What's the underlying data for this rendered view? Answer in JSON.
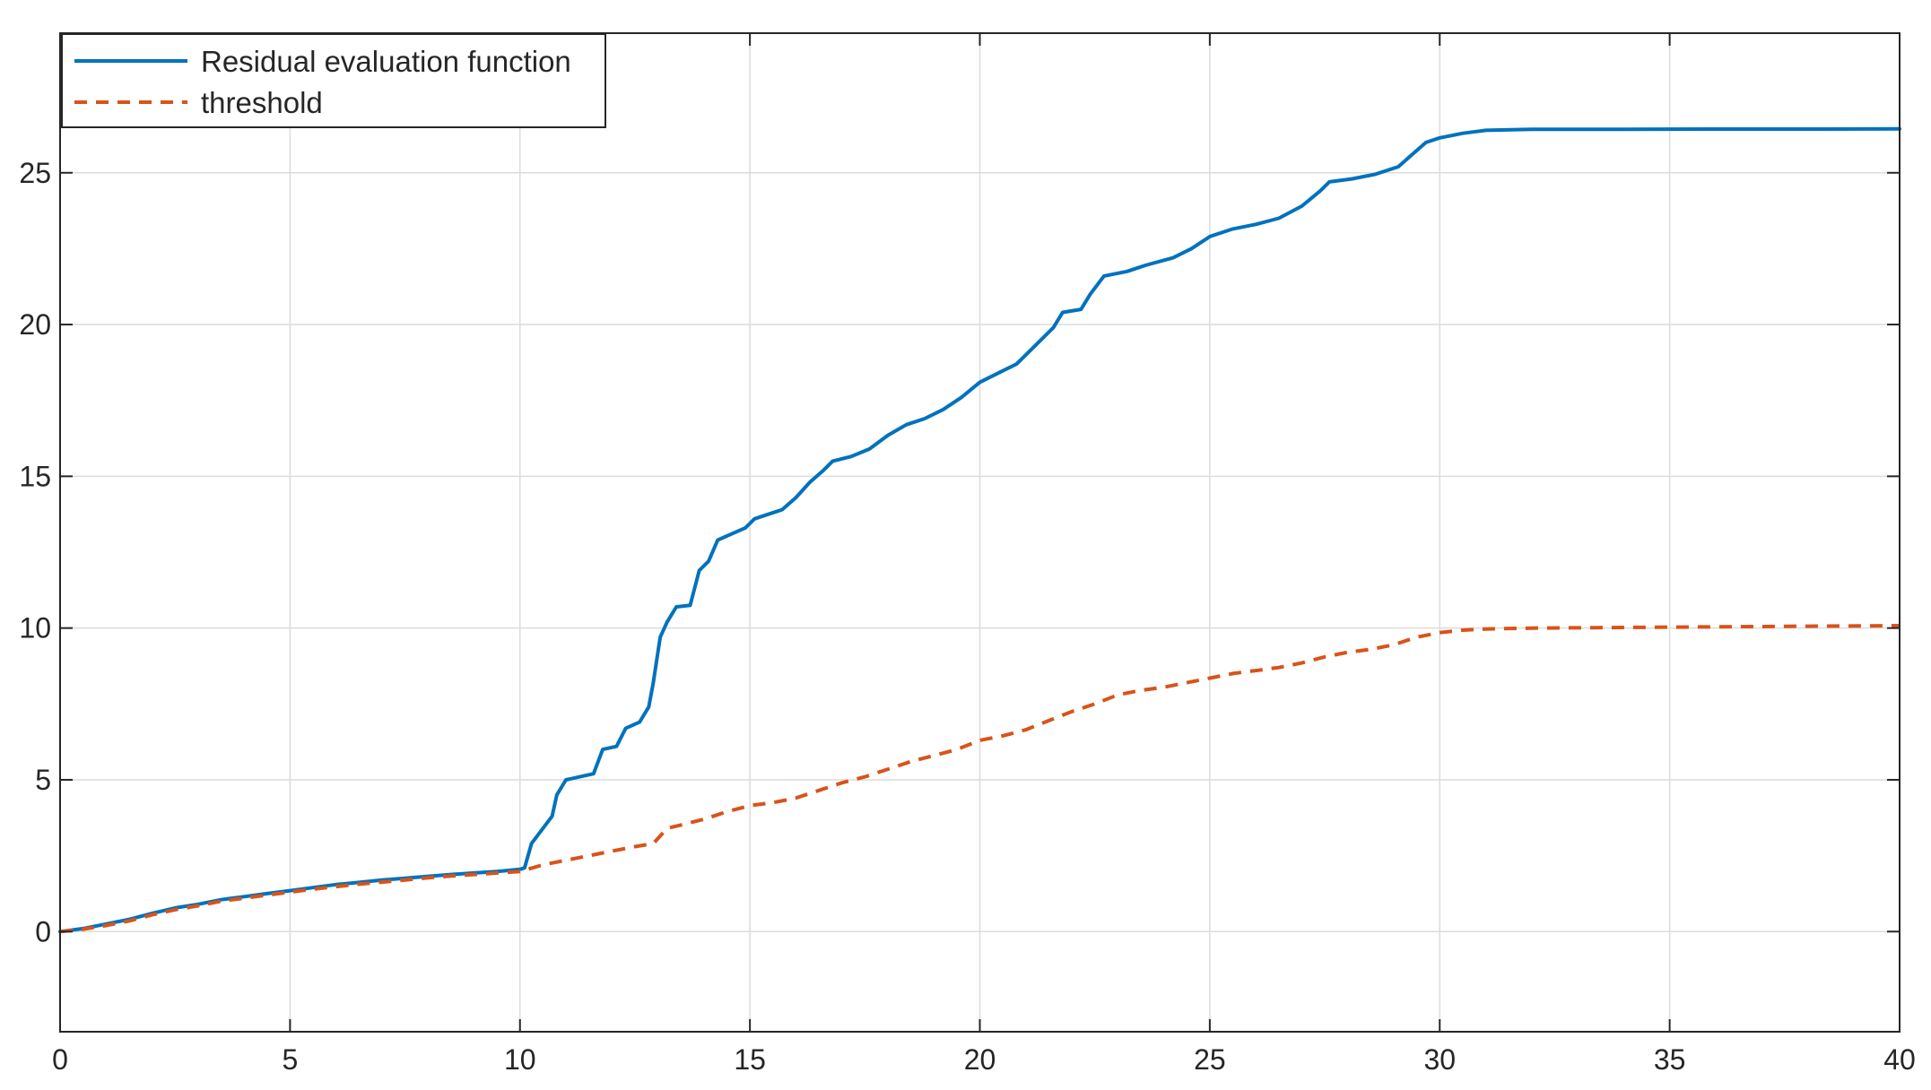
{
  "chart_data": {
    "type": "line",
    "title": "",
    "xlabel": "",
    "ylabel": "",
    "xlim": [
      0,
      40
    ],
    "ylim": [
      -3.3,
      29.6
    ],
    "xticks": [
      0,
      5,
      10,
      15,
      20,
      25,
      30,
      35,
      40
    ],
    "yticks": [
      0,
      5,
      10,
      15,
      20,
      25
    ],
    "grid": true,
    "legend_position": "top-left",
    "series": [
      {
        "name": "Residual evaluation function",
        "color": "#0072BD",
        "style": "solid",
        "points": [
          [
            0,
            0
          ],
          [
            0.5,
            0.1
          ],
          [
            1,
            0.25
          ],
          [
            1.5,
            0.4
          ],
          [
            2,
            0.6
          ],
          [
            2.5,
            0.78
          ],
          [
            3,
            0.9
          ],
          [
            3.5,
            1.05
          ],
          [
            4,
            1.15
          ],
          [
            4.5,
            1.25
          ],
          [
            5,
            1.35
          ],
          [
            5.5,
            1.45
          ],
          [
            6,
            1.55
          ],
          [
            6.5,
            1.62
          ],
          [
            7,
            1.7
          ],
          [
            7.5,
            1.76
          ],
          [
            8,
            1.82
          ],
          [
            8.5,
            1.88
          ],
          [
            9,
            1.93
          ],
          [
            9.5,
            1.98
          ],
          [
            10,
            2.05
          ],
          [
            10.1,
            2.1
          ],
          [
            10.25,
            2.9
          ],
          [
            10.5,
            3.4
          ],
          [
            10.7,
            3.8
          ],
          [
            10.8,
            4.5
          ],
          [
            11,
            5.0
          ],
          [
            11.3,
            5.1
          ],
          [
            11.6,
            5.2
          ],
          [
            11.8,
            6.0
          ],
          [
            12.1,
            6.1
          ],
          [
            12.3,
            6.7
          ],
          [
            12.6,
            6.9
          ],
          [
            12.8,
            7.4
          ],
          [
            12.9,
            8.2
          ],
          [
            13.05,
            9.7
          ],
          [
            13.2,
            10.2
          ],
          [
            13.4,
            10.7
          ],
          [
            13.7,
            10.75
          ],
          [
            13.9,
            11.9
          ],
          [
            14.1,
            12.2
          ],
          [
            14.3,
            12.9
          ],
          [
            14.6,
            13.1
          ],
          [
            14.9,
            13.3
          ],
          [
            15.1,
            13.6
          ],
          [
            15.4,
            13.75
          ],
          [
            15.7,
            13.9
          ],
          [
            16,
            14.3
          ],
          [
            16.3,
            14.8
          ],
          [
            16.6,
            15.2
          ],
          [
            16.8,
            15.5
          ],
          [
            17.2,
            15.65
          ],
          [
            17.6,
            15.9
          ],
          [
            18,
            16.35
          ],
          [
            18.4,
            16.7
          ],
          [
            18.8,
            16.9
          ],
          [
            19.2,
            17.2
          ],
          [
            19.6,
            17.6
          ],
          [
            20,
            18.1
          ],
          [
            20.4,
            18.4
          ],
          [
            20.8,
            18.7
          ],
          [
            21.2,
            19.3
          ],
          [
            21.6,
            19.9
          ],
          [
            21.8,
            20.4
          ],
          [
            22.2,
            20.5
          ],
          [
            22.4,
            21.0
          ],
          [
            22.7,
            21.6
          ],
          [
            23.2,
            21.75
          ],
          [
            23.6,
            21.95
          ],
          [
            24.2,
            22.2
          ],
          [
            24.6,
            22.5
          ],
          [
            25,
            22.9
          ],
          [
            25.5,
            23.15
          ],
          [
            26,
            23.3
          ],
          [
            26.5,
            23.5
          ],
          [
            27,
            23.9
          ],
          [
            27.4,
            24.4
          ],
          [
            27.6,
            24.7
          ],
          [
            28.1,
            24.8
          ],
          [
            28.6,
            24.95
          ],
          [
            29.1,
            25.2
          ],
          [
            29.4,
            25.6
          ],
          [
            29.7,
            26.0
          ],
          [
            30,
            26.15
          ],
          [
            30.5,
            26.3
          ],
          [
            31,
            26.4
          ],
          [
            32,
            26.43
          ],
          [
            34,
            26.43
          ],
          [
            36,
            26.44
          ],
          [
            38,
            26.44
          ],
          [
            40,
            26.45
          ]
        ]
      },
      {
        "name": "threshold",
        "color": "#D95319",
        "style": "dashed",
        "points": [
          [
            0,
            0
          ],
          [
            0.5,
            0.08
          ],
          [
            1,
            0.2
          ],
          [
            1.5,
            0.35
          ],
          [
            2,
            0.55
          ],
          [
            2.5,
            0.72
          ],
          [
            3,
            0.85
          ],
          [
            3.5,
            1.0
          ],
          [
            4,
            1.1
          ],
          [
            4.5,
            1.2
          ],
          [
            5,
            1.3
          ],
          [
            5.5,
            1.4
          ],
          [
            6,
            1.48
          ],
          [
            6.5,
            1.56
          ],
          [
            7,
            1.63
          ],
          [
            7.5,
            1.7
          ],
          [
            8,
            1.77
          ],
          [
            8.5,
            1.83
          ],
          [
            9,
            1.88
          ],
          [
            9.5,
            1.93
          ],
          [
            10,
            1.98
          ],
          [
            10.5,
            2.2
          ],
          [
            11,
            2.35
          ],
          [
            11.5,
            2.5
          ],
          [
            12,
            2.65
          ],
          [
            12.5,
            2.8
          ],
          [
            12.9,
            2.9
          ],
          [
            13.2,
            3.4
          ],
          [
            13.6,
            3.55
          ],
          [
            14,
            3.7
          ],
          [
            14.5,
            3.95
          ],
          [
            15,
            4.15
          ],
          [
            15.5,
            4.25
          ],
          [
            16,
            4.4
          ],
          [
            16.5,
            4.65
          ],
          [
            17,
            4.9
          ],
          [
            17.5,
            5.1
          ],
          [
            18,
            5.35
          ],
          [
            18.5,
            5.6
          ],
          [
            19,
            5.8
          ],
          [
            19.5,
            6.0
          ],
          [
            20,
            6.3
          ],
          [
            20.5,
            6.45
          ],
          [
            21,
            6.65
          ],
          [
            21.5,
            6.95
          ],
          [
            22,
            7.25
          ],
          [
            22.5,
            7.5
          ],
          [
            23,
            7.8
          ],
          [
            23.5,
            7.95
          ],
          [
            24,
            8.05
          ],
          [
            24.5,
            8.2
          ],
          [
            25,
            8.35
          ],
          [
            25.5,
            8.5
          ],
          [
            26,
            8.6
          ],
          [
            26.5,
            8.7
          ],
          [
            27,
            8.85
          ],
          [
            27.5,
            9.05
          ],
          [
            28,
            9.2
          ],
          [
            28.5,
            9.3
          ],
          [
            29,
            9.45
          ],
          [
            29.5,
            9.7
          ],
          [
            30,
            9.85
          ],
          [
            30.5,
            9.93
          ],
          [
            31,
            9.97
          ],
          [
            32,
            10.0
          ],
          [
            34,
            10.02
          ],
          [
            36,
            10.04
          ],
          [
            38,
            10.06
          ],
          [
            40,
            10.08
          ]
        ]
      }
    ]
  }
}
